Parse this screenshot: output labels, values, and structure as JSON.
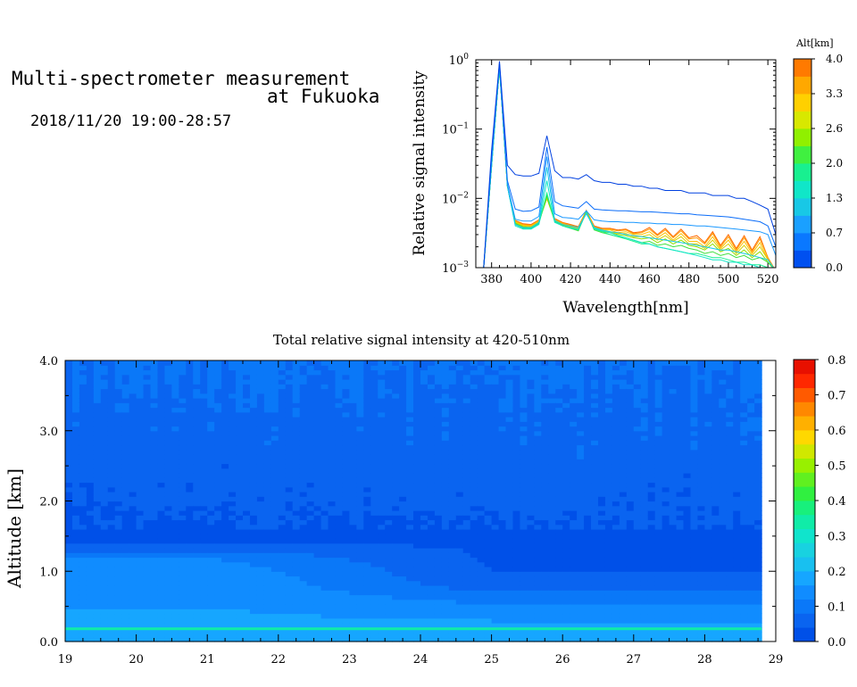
{
  "header": {
    "title_line1": "Multi-spectrometer measurement",
    "title_line2": "at Fukuoka",
    "datetime": "2018/11/20 19:00-28:57"
  },
  "chart_data": [
    {
      "type": "line",
      "xlabel": "Wavelength[nm]",
      "ylabel": "Relative signal intensity",
      "yscale": "log",
      "xlim": [
        372,
        524
      ],
      "ylim": [
        0.001,
        1
      ],
      "x_ticks": [
        380,
        400,
        420,
        440,
        460,
        480,
        500,
        520
      ],
      "y_ticks": [
        {
          "value": 1,
          "label_base": "10",
          "label_exp": "0"
        },
        {
          "value": 0.1,
          "label_base": "10",
          "label_exp": "−1"
        },
        {
          "value": 0.01,
          "label_base": "10",
          "label_exp": "−2"
        },
        {
          "value": 0.001,
          "label_base": "10",
          "label_exp": "−3"
        }
      ],
      "colorbar": {
        "title": "Alt[km]",
        "tick_labels": [
          "0.0",
          "0.7",
          "1.3",
          "2.0",
          "2.6",
          "3.3",
          "4.0"
        ],
        "colors": [
          "#0050f0",
          "#0a78ff",
          "#1aa0ff",
          "#18c8e6",
          "#10e6c8",
          "#18f090",
          "#40f040",
          "#90f000",
          "#d8e800",
          "#ffd000",
          "#ffa800",
          "#ff7a00"
        ]
      },
      "x": [
        376,
        380,
        384,
        388,
        392,
        396,
        400,
        404,
        408,
        412,
        416,
        420,
        424,
        428,
        432,
        436,
        440,
        444,
        448,
        452,
        456,
        460,
        464,
        468,
        472,
        476,
        480,
        484,
        488,
        492,
        496,
        500,
        504,
        508,
        512,
        516,
        520,
        524
      ],
      "series": [
        {
          "altitude": 0.0,
          "color": "#0040e0",
          "values": [
            0.001,
            0.05,
            0.95,
            0.03,
            0.022,
            0.021,
            0.021,
            0.023,
            0.08,
            0.025,
            0.02,
            0.02,
            0.019,
            0.022,
            0.018,
            0.017,
            0.017,
            0.016,
            0.016,
            0.015,
            0.015,
            0.014,
            0.014,
            0.013,
            0.013,
            0.013,
            0.012,
            0.012,
            0.012,
            0.011,
            0.011,
            0.011,
            0.01,
            0.01,
            0.009,
            0.008,
            0.007,
            0.003
          ]
        },
        {
          "altitude": 0.3,
          "color": "#0a6cf8",
          "values": [
            0.001,
            0.04,
            0.9,
            0.018,
            0.007,
            0.0065,
            0.0066,
            0.0075,
            0.055,
            0.009,
            0.0078,
            0.0075,
            0.0072,
            0.009,
            0.007,
            0.0068,
            0.0067,
            0.0066,
            0.0066,
            0.0065,
            0.0064,
            0.0064,
            0.0063,
            0.0062,
            0.0061,
            0.006,
            0.006,
            0.0058,
            0.0057,
            0.0056,
            0.0055,
            0.0054,
            0.0052,
            0.005,
            0.0048,
            0.0046,
            0.004,
            0.002
          ]
        },
        {
          "altitude": 0.6,
          "color": "#1a98ff",
          "values": [
            0.001,
            0.035,
            0.85,
            0.016,
            0.005,
            0.0047,
            0.0047,
            0.0055,
            0.04,
            0.006,
            0.0053,
            0.0052,
            0.005,
            0.0066,
            0.0049,
            0.0047,
            0.0046,
            0.0046,
            0.0045,
            0.0045,
            0.0044,
            0.0044,
            0.0043,
            0.0043,
            0.0042,
            0.0042,
            0.0041,
            0.004,
            0.004,
            0.0039,
            0.0038,
            0.0037,
            0.0036,
            0.0035,
            0.0034,
            0.0033,
            0.003,
            0.0015
          ]
        },
        {
          "altitude": 0.9,
          "color": "#18c8e6",
          "values": [
            0.001,
            0.03,
            0.8,
            0.015,
            0.0042,
            0.0038,
            0.0038,
            0.0045,
            0.028,
            0.0048,
            0.0042,
            0.004,
            0.0038,
            0.006,
            0.0038,
            0.0035,
            0.0033,
            0.0032,
            0.003,
            0.0029,
            0.0028,
            0.0027,
            0.0026,
            0.0025,
            0.0024,
            0.0023,
            0.0022,
            0.0021,
            0.002,
            0.0019,
            0.0018,
            0.0018,
            0.0017,
            0.0016,
            0.0015,
            0.0014,
            0.0013,
            0.0009
          ]
        },
        {
          "altitude": 1.2,
          "color": "#10e6c8",
          "values": [
            0.001,
            0.03,
            0.78,
            0.015,
            0.004,
            0.0036,
            0.0036,
            0.0042,
            0.018,
            0.0045,
            0.004,
            0.0038,
            0.0036,
            0.0062,
            0.0037,
            0.0034,
            0.0032,
            0.0029,
            0.0027,
            0.0025,
            0.0023,
            0.0022,
            0.002,
            0.0019,
            0.0018,
            0.0017,
            0.0016,
            0.0015,
            0.0014,
            0.0013,
            0.0013,
            0.0012,
            0.0012,
            0.0011,
            0.0011,
            0.001,
            0.001,
            0.0008
          ]
        },
        {
          "altitude": 1.6,
          "color": "#18f090",
          "values": [
            0.001,
            0.03,
            0.78,
            0.015,
            0.0042,
            0.0037,
            0.0037,
            0.0043,
            0.012,
            0.0046,
            0.004,
            0.0037,
            0.0035,
            0.0063,
            0.0036,
            0.0033,
            0.003,
            0.0028,
            0.0026,
            0.0024,
            0.0022,
            0.0022,
            0.002,
            0.0019,
            0.0018,
            0.0017,
            0.0016,
            0.0016,
            0.0015,
            0.0014,
            0.0014,
            0.0013,
            0.0012,
            0.0012,
            0.0011,
            0.0011,
            0.001,
            0.0008
          ]
        },
        {
          "altitude": 2.0,
          "color": "#40e040",
          "values": [
            0.001,
            0.03,
            0.78,
            0.015,
            0.0043,
            0.0038,
            0.0037,
            0.0044,
            0.011,
            0.0046,
            0.004,
            0.0037,
            0.0034,
            0.0064,
            0.0035,
            0.0032,
            0.003,
            0.0028,
            0.0027,
            0.0025,
            0.0023,
            0.0024,
            0.0021,
            0.0022,
            0.002,
            0.0021,
            0.0019,
            0.0018,
            0.0016,
            0.0017,
            0.0015,
            0.0016,
            0.0014,
            0.0015,
            0.0013,
            0.0014,
            0.0012,
            0.0009
          ]
        },
        {
          "altitude": 2.4,
          "color": "#90e000",
          "values": [
            0.001,
            0.03,
            0.78,
            0.015,
            0.0044,
            0.0039,
            0.0038,
            0.0045,
            0.0105,
            0.0047,
            0.0041,
            0.0038,
            0.0035,
            0.0064,
            0.0036,
            0.0033,
            0.0032,
            0.003,
            0.0029,
            0.0027,
            0.0026,
            0.0027,
            0.0023,
            0.0026,
            0.0022,
            0.0025,
            0.0021,
            0.002,
            0.0018,
            0.0022,
            0.0017,
            0.0019,
            0.0015,
            0.0018,
            0.0014,
            0.0017,
            0.0012,
            0.0009
          ]
        },
        {
          "altitude": 2.8,
          "color": "#d8d000",
          "values": [
            0.001,
            0.03,
            0.78,
            0.015,
            0.0045,
            0.004,
            0.0039,
            0.0046,
            0.01,
            0.0048,
            0.0042,
            0.0039,
            0.0036,
            0.0065,
            0.0037,
            0.0034,
            0.0033,
            0.0031,
            0.0031,
            0.0028,
            0.0028,
            0.003,
            0.0025,
            0.0029,
            0.0024,
            0.0028,
            0.0022,
            0.0022,
            0.0019,
            0.0025,
            0.0018,
            0.0022,
            0.0016,
            0.0021,
            0.0015,
            0.002,
            0.0013,
            0.0009
          ]
        },
        {
          "altitude": 3.2,
          "color": "#ffc000",
          "values": [
            0.001,
            0.03,
            0.78,
            0.015,
            0.0046,
            0.0041,
            0.004,
            0.0047,
            0.01,
            0.0049,
            0.0043,
            0.004,
            0.0037,
            0.0066,
            0.0038,
            0.0035,
            0.0035,
            0.0032,
            0.0033,
            0.003,
            0.003,
            0.0033,
            0.0027,
            0.0032,
            0.0025,
            0.0031,
            0.0024,
            0.0024,
            0.002,
            0.0028,
            0.0019,
            0.0025,
            0.0017,
            0.0024,
            0.0016,
            0.0023,
            0.0013,
            0.0009
          ]
        },
        {
          "altitude": 3.6,
          "color": "#ff9a00",
          "values": [
            0.001,
            0.03,
            0.78,
            0.015,
            0.0047,
            0.0042,
            0.0041,
            0.0048,
            0.01,
            0.005,
            0.0044,
            0.0041,
            0.0038,
            0.0066,
            0.0039,
            0.0036,
            0.0036,
            0.0034,
            0.0035,
            0.0031,
            0.0032,
            0.0036,
            0.0029,
            0.0035,
            0.0027,
            0.0034,
            0.0026,
            0.0027,
            0.0022,
            0.0031,
            0.002,
            0.0028,
            0.0018,
            0.0027,
            0.0017,
            0.0026,
            0.0014,
            0.0009
          ]
        },
        {
          "altitude": 4.0,
          "color": "#ff6a00",
          "values": [
            0.001,
            0.03,
            0.78,
            0.015,
            0.0048,
            0.0043,
            0.0042,
            0.0049,
            0.01,
            0.0051,
            0.0045,
            0.0042,
            0.0039,
            0.0067,
            0.004,
            0.0037,
            0.0037,
            0.0035,
            0.0036,
            0.0032,
            0.0033,
            0.0038,
            0.003,
            0.0037,
            0.0028,
            0.0036,
            0.0027,
            0.0029,
            0.0023,
            0.0033,
            0.0021,
            0.003,
            0.0019,
            0.0029,
            0.0018,
            0.0028,
            0.0014,
            0.0009
          ]
        }
      ]
    },
    {
      "type": "heatmap",
      "title": "Total relative signal intensity at 420-510nm",
      "ylabel": "Altitude [km]",
      "xlim": [
        19,
        29
      ],
      "ylim": [
        0,
        4
      ],
      "x_ticks": [
        19,
        20,
        21,
        22,
        23,
        24,
        25,
        26,
        27,
        28,
        29
      ],
      "x_tick_labels": [
        "19",
        "20",
        "21",
        "22",
        "23",
        "24",
        "25",
        "26",
        "27",
        "28",
        "29"
      ],
      "y_ticks": [
        0,
        1,
        2,
        3,
        4
      ],
      "y_tick_labels": [
        "0.0",
        "1.0",
        "2.0",
        "3.0",
        "4.0"
      ],
      "data_x_range": [
        19,
        28.8
      ],
      "colorbar": {
        "tick_labels": [
          "0.0",
          "0.1",
          "0.2",
          "0.3",
          "0.4",
          "0.5",
          "0.6",
          "0.7",
          "0.8"
        ],
        "vmin": 0,
        "vmax": 0.8,
        "colors": [
          "#0050e8",
          "#0a64f0",
          "#0a78f8",
          "#108cff",
          "#16a6ff",
          "#18c0f0",
          "#18d2e0",
          "#10e4cc",
          "#10eca8",
          "#18f07c",
          "#30f040",
          "#60f020",
          "#98f000",
          "#d0e800",
          "#ffd800",
          "#ffb000",
          "#ff8800",
          "#ff5a00",
          "#ff2800",
          "#e81000"
        ]
      },
      "profile_altitude_km": [
        0.0,
        0.12,
        0.2,
        0.3,
        0.5,
        0.8,
        1.0,
        1.2,
        1.4,
        1.7,
        2.0,
        2.5,
        3.0,
        3.5,
        4.0
      ],
      "profile_value_early": [
        0.17,
        0.17,
        0.17,
        0.17,
        0.16,
        0.155,
        0.15,
        0.12,
        0.04,
        0.035,
        0.045,
        0.055,
        0.065,
        0.075,
        0.085
      ],
      "profile_value_late": [
        0.17,
        0.17,
        0.17,
        0.16,
        0.13,
        0.06,
        0.04,
        0.035,
        0.035,
        0.04,
        0.05,
        0.06,
        0.07,
        0.075,
        0.085
      ],
      "surface_band_value": 0.34
    }
  ]
}
